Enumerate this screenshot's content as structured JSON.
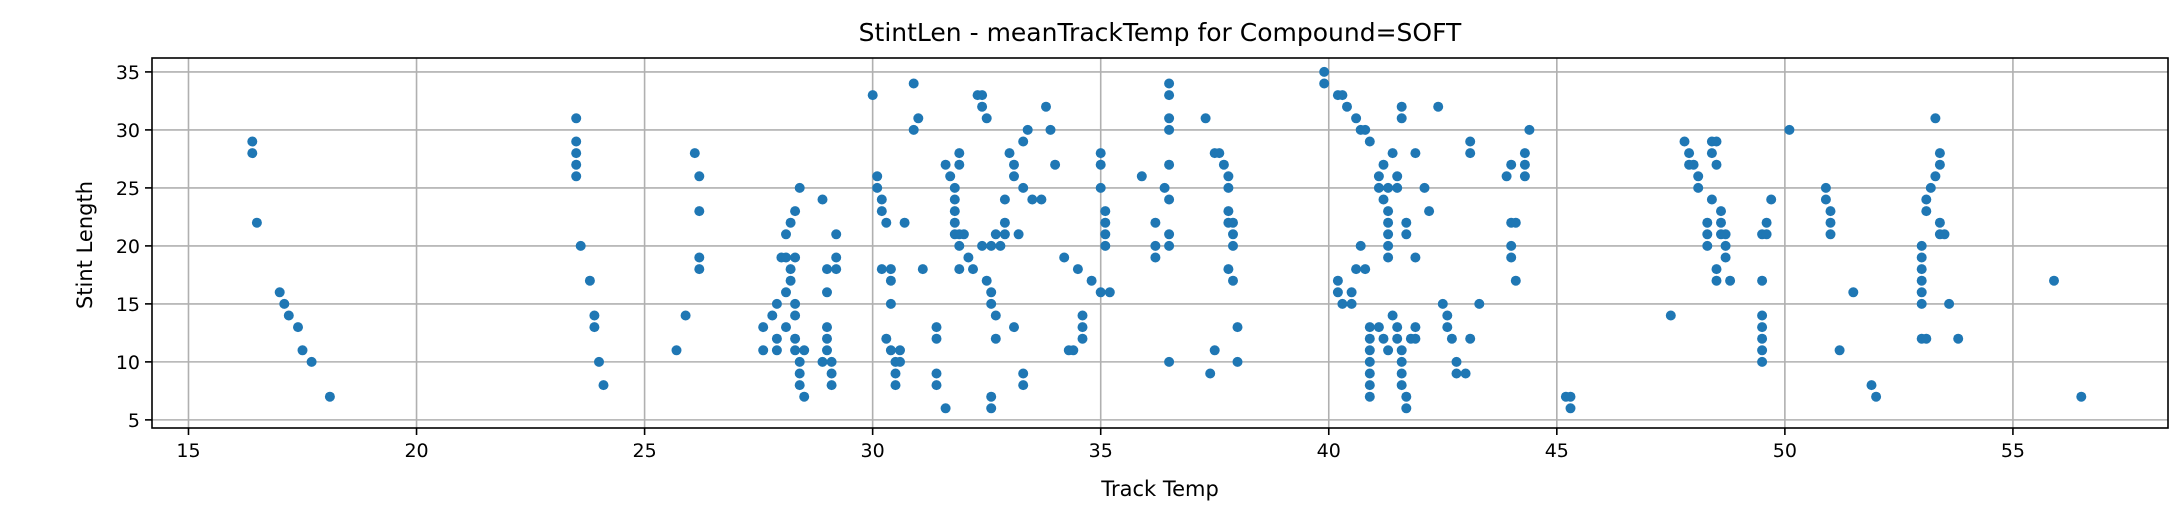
{
  "chart_data": {
    "type": "scatter",
    "title": "StintLen - meanTrackTemp for Compound=SOFT",
    "xlabel": "Track Temp",
    "ylabel": "Stint Length",
    "xlim": [
      14.2,
      58.4
    ],
    "ylim": [
      4.3,
      36.2
    ],
    "xticks": [
      15,
      20,
      25,
      30,
      35,
      40,
      45,
      50,
      55
    ],
    "yticks": [
      5,
      10,
      15,
      20,
      25,
      30,
      35
    ],
    "grid": true,
    "marker_color": "#1f77b4",
    "points": [
      [
        16.4,
        29
      ],
      [
        16.4,
        28
      ],
      [
        16.5,
        22
      ],
      [
        17.0,
        16
      ],
      [
        17.1,
        15
      ],
      [
        17.2,
        14
      ],
      [
        17.4,
        13
      ],
      [
        17.5,
        11
      ],
      [
        17.7,
        10
      ],
      [
        18.1,
        7
      ],
      [
        23.5,
        31
      ],
      [
        23.5,
        29
      ],
      [
        23.5,
        28
      ],
      [
        23.5,
        27
      ],
      [
        23.5,
        26
      ],
      [
        23.6,
        20
      ],
      [
        23.8,
        17
      ],
      [
        23.9,
        14
      ],
      [
        23.9,
        13
      ],
      [
        24.0,
        10
      ],
      [
        24.1,
        8
      ],
      [
        25.7,
        11
      ],
      [
        25.9,
        14
      ],
      [
        26.1,
        28
      ],
      [
        26.2,
        26
      ],
      [
        26.2,
        23
      ],
      [
        26.2,
        19
      ],
      [
        26.2,
        18
      ],
      [
        27.6,
        11
      ],
      [
        27.6,
        13
      ],
      [
        27.8,
        14
      ],
      [
        27.9,
        15
      ],
      [
        27.9,
        12
      ],
      [
        27.9,
        11
      ],
      [
        28.0,
        19
      ],
      [
        28.1,
        16
      ],
      [
        28.1,
        13
      ],
      [
        28.1,
        21
      ],
      [
        28.2,
        22
      ],
      [
        28.3,
        23
      ],
      [
        28.1,
        19
      ],
      [
        28.2,
        18
      ],
      [
        28.3,
        19
      ],
      [
        28.2,
        17
      ],
      [
        28.3,
        15
      ],
      [
        28.3,
        14
      ],
      [
        28.3,
        12
      ],
      [
        28.3,
        11
      ],
      [
        28.4,
        10
      ],
      [
        28.4,
        9
      ],
      [
        28.4,
        8
      ],
      [
        28.5,
        7
      ],
      [
        28.5,
        11
      ],
      [
        28.4,
        25
      ],
      [
        28.9,
        24
      ],
      [
        28.9,
        10
      ],
      [
        29.0,
        18
      ],
      [
        29.0,
        16
      ],
      [
        29.0,
        13
      ],
      [
        29.0,
        12
      ],
      [
        29.0,
        11
      ],
      [
        29.1,
        10
      ],
      [
        29.1,
        9
      ],
      [
        29.1,
        8
      ],
      [
        29.2,
        21
      ],
      [
        29.2,
        19
      ],
      [
        29.2,
        18
      ],
      [
        30.0,
        33
      ],
      [
        30.1,
        26
      ],
      [
        30.1,
        25
      ],
      [
        30.2,
        24
      ],
      [
        30.2,
        23
      ],
      [
        30.3,
        22
      ],
      [
        30.2,
        18
      ],
      [
        30.4,
        18
      ],
      [
        30.4,
        17
      ],
      [
        30.4,
        15
      ],
      [
        30.3,
        12
      ],
      [
        30.4,
        11
      ],
      [
        30.5,
        10
      ],
      [
        30.5,
        9
      ],
      [
        30.5,
        8
      ],
      [
        30.6,
        11
      ],
      [
        30.6,
        10
      ],
      [
        30.7,
        22
      ],
      [
        30.9,
        30
      ],
      [
        30.9,
        34
      ],
      [
        31.0,
        31
      ],
      [
        31.1,
        18
      ],
      [
        31.4,
        13
      ],
      [
        31.4,
        12
      ],
      [
        31.4,
        9
      ],
      [
        31.4,
        8
      ],
      [
        31.6,
        6
      ],
      [
        31.6,
        27
      ],
      [
        31.7,
        26
      ],
      [
        31.8,
        25
      ],
      [
        31.8,
        24
      ],
      [
        31.8,
        23
      ],
      [
        31.8,
        22
      ],
      [
        31.8,
        21
      ],
      [
        31.9,
        27
      ],
      [
        31.9,
        28
      ],
      [
        31.9,
        21
      ],
      [
        31.9,
        20
      ],
      [
        31.9,
        18
      ],
      [
        32.0,
        21
      ],
      [
        32.1,
        19
      ],
      [
        32.2,
        18
      ],
      [
        32.3,
        33
      ],
      [
        32.4,
        33
      ],
      [
        32.4,
        32
      ],
      [
        32.5,
        31
      ],
      [
        32.4,
        20
      ],
      [
        32.5,
        17
      ],
      [
        32.6,
        16
      ],
      [
        32.6,
        15
      ],
      [
        32.7,
        14
      ],
      [
        32.6,
        20
      ],
      [
        32.7,
        21
      ],
      [
        32.7,
        12
      ],
      [
        32.6,
        7
      ],
      [
        32.6,
        6
      ],
      [
        32.8,
        20
      ],
      [
        32.9,
        21
      ],
      [
        32.9,
        24
      ],
      [
        32.9,
        22
      ],
      [
        33.0,
        28
      ],
      [
        33.1,
        27
      ],
      [
        33.1,
        26
      ],
      [
        33.1,
        13
      ],
      [
        33.2,
        21
      ],
      [
        33.3,
        29
      ],
      [
        33.4,
        30
      ],
      [
        33.3,
        25
      ],
      [
        33.3,
        9
      ],
      [
        33.3,
        8
      ],
      [
        33.5,
        24
      ],
      [
        33.7,
        24
      ],
      [
        33.8,
        32
      ],
      [
        33.9,
        30
      ],
      [
        34.0,
        27
      ],
      [
        34.2,
        19
      ],
      [
        34.3,
        11
      ],
      [
        34.4,
        11
      ],
      [
        34.5,
        18
      ],
      [
        34.6,
        12
      ],
      [
        34.6,
        13
      ],
      [
        34.6,
        14
      ],
      [
        34.8,
        17
      ],
      [
        35.0,
        16
      ],
      [
        35.2,
        16
      ],
      [
        35.0,
        28
      ],
      [
        35.0,
        27
      ],
      [
        35.0,
        25
      ],
      [
        35.1,
        23
      ],
      [
        35.1,
        22
      ],
      [
        35.1,
        21
      ],
      [
        35.1,
        20
      ],
      [
        35.9,
        26
      ],
      [
        36.2,
        22
      ],
      [
        36.2,
        20
      ],
      [
        36.2,
        19
      ],
      [
        36.4,
        25
      ],
      [
        36.5,
        34
      ],
      [
        36.5,
        33
      ],
      [
        36.5,
        31
      ],
      [
        36.5,
        30
      ],
      [
        36.5,
        27
      ],
      [
        36.5,
        24
      ],
      [
        36.5,
        21
      ],
      [
        36.5,
        20
      ],
      [
        36.5,
        10
      ],
      [
        37.3,
        31
      ],
      [
        37.4,
        9
      ],
      [
        37.5,
        11
      ],
      [
        37.5,
        28
      ],
      [
        37.6,
        28
      ],
      [
        37.7,
        27
      ],
      [
        37.8,
        26
      ],
      [
        37.8,
        25
      ],
      [
        37.8,
        23
      ],
      [
        37.8,
        22
      ],
      [
        37.9,
        22
      ],
      [
        37.9,
        21
      ],
      [
        37.9,
        20
      ],
      [
        37.8,
        18
      ],
      [
        37.9,
        17
      ],
      [
        38.0,
        13
      ],
      [
        38.0,
        10
      ],
      [
        39.9,
        35
      ],
      [
        39.9,
        34
      ],
      [
        40.2,
        33
      ],
      [
        40.3,
        33
      ],
      [
        40.4,
        32
      ],
      [
        40.6,
        31
      ],
      [
        40.7,
        30
      ],
      [
        40.8,
        30
      ],
      [
        40.9,
        29
      ],
      [
        40.2,
        17
      ],
      [
        40.2,
        16
      ],
      [
        40.3,
        15
      ],
      [
        40.5,
        16
      ],
      [
        40.5,
        15
      ],
      [
        40.6,
        18
      ],
      [
        40.7,
        20
      ],
      [
        40.8,
        18
      ],
      [
        40.9,
        13
      ],
      [
        40.9,
        12
      ],
      [
        40.9,
        11
      ],
      [
        40.9,
        10
      ],
      [
        40.9,
        9
      ],
      [
        40.9,
        8
      ],
      [
        40.9,
        7
      ],
      [
        41.1,
        26
      ],
      [
        41.1,
        25
      ],
      [
        41.2,
        27
      ],
      [
        41.2,
        24
      ],
      [
        41.3,
        25
      ],
      [
        41.3,
        23
      ],
      [
        41.3,
        22
      ],
      [
        41.3,
        21
      ],
      [
        41.3,
        20
      ],
      [
        41.3,
        19
      ],
      [
        41.1,
        13
      ],
      [
        41.2,
        12
      ],
      [
        41.3,
        11
      ],
      [
        41.4,
        14
      ],
      [
        41.4,
        28
      ],
      [
        41.5,
        26
      ],
      [
        41.5,
        25
      ],
      [
        41.5,
        13
      ],
      [
        41.5,
        12
      ],
      [
        41.6,
        11
      ],
      [
        41.6,
        10
      ],
      [
        41.6,
        9
      ],
      [
        41.6,
        8
      ],
      [
        41.7,
        7
      ],
      [
        41.7,
        6
      ],
      [
        41.6,
        32
      ],
      [
        41.6,
        31
      ],
      [
        41.7,
        22
      ],
      [
        41.7,
        21
      ],
      [
        41.8,
        12
      ],
      [
        41.9,
        13
      ],
      [
        41.9,
        19
      ],
      [
        41.9,
        28
      ],
      [
        41.9,
        12
      ],
      [
        42.1,
        25
      ],
      [
        42.2,
        23
      ],
      [
        42.4,
        32
      ],
      [
        42.5,
        15
      ],
      [
        42.6,
        14
      ],
      [
        42.6,
        13
      ],
      [
        42.7,
        12
      ],
      [
        42.8,
        10
      ],
      [
        42.8,
        9
      ],
      [
        43.0,
        9
      ],
      [
        43.1,
        12
      ],
      [
        43.1,
        28
      ],
      [
        43.1,
        29
      ],
      [
        43.3,
        15
      ],
      [
        43.9,
        26
      ],
      [
        44.0,
        27
      ],
      [
        44.0,
        22
      ],
      [
        44.1,
        22
      ],
      [
        44.0,
        20
      ],
      [
        44.0,
        19
      ],
      [
        44.1,
        17
      ],
      [
        44.3,
        26
      ],
      [
        44.3,
        27
      ],
      [
        44.3,
        28
      ],
      [
        44.4,
        30
      ],
      [
        45.2,
        7
      ],
      [
        45.3,
        7
      ],
      [
        45.3,
        6
      ],
      [
        47.5,
        14
      ],
      [
        47.8,
        29
      ],
      [
        47.9,
        28
      ],
      [
        47.9,
        27
      ],
      [
        48.0,
        27
      ],
      [
        48.1,
        26
      ],
      [
        48.1,
        25
      ],
      [
        48.3,
        22
      ],
      [
        48.3,
        21
      ],
      [
        48.3,
        20
      ],
      [
        48.4,
        29
      ],
      [
        48.4,
        28
      ],
      [
        48.5,
        29
      ],
      [
        48.5,
        27
      ],
      [
        48.4,
        24
      ],
      [
        48.6,
        23
      ],
      [
        48.6,
        22
      ],
      [
        48.5,
        18
      ],
      [
        48.5,
        17
      ],
      [
        48.6,
        21
      ],
      [
        48.7,
        20
      ],
      [
        48.7,
        19
      ],
      [
        48.7,
        21
      ],
      [
        48.8,
        17
      ],
      [
        49.5,
        17
      ],
      [
        49.5,
        14
      ],
      [
        49.5,
        13
      ],
      [
        49.5,
        12
      ],
      [
        49.5,
        11
      ],
      [
        49.5,
        10
      ],
      [
        49.5,
        21
      ],
      [
        49.6,
        21
      ],
      [
        49.6,
        22
      ],
      [
        49.7,
        24
      ],
      [
        50.1,
        30
      ],
      [
        50.9,
        25
      ],
      [
        50.9,
        24
      ],
      [
        51.0,
        23
      ],
      [
        51.0,
        22
      ],
      [
        51.0,
        21
      ],
      [
        51.2,
        11
      ],
      [
        51.5,
        16
      ],
      [
        51.9,
        8
      ],
      [
        52.0,
        7
      ],
      [
        53.0,
        20
      ],
      [
        53.0,
        19
      ],
      [
        53.0,
        18
      ],
      [
        53.0,
        17
      ],
      [
        53.0,
        16
      ],
      [
        53.0,
        15
      ],
      [
        53.0,
        12
      ],
      [
        53.1,
        12
      ],
      [
        53.1,
        23
      ],
      [
        53.1,
        24
      ],
      [
        53.2,
        25
      ],
      [
        53.3,
        26
      ],
      [
        53.4,
        27
      ],
      [
        53.4,
        28
      ],
      [
        53.3,
        31
      ],
      [
        53.4,
        21
      ],
      [
        53.5,
        21
      ],
      [
        53.4,
        22
      ],
      [
        53.6,
        15
      ],
      [
        53.8,
        12
      ],
      [
        55.9,
        17
      ],
      [
        56.5,
        7
      ]
    ]
  }
}
